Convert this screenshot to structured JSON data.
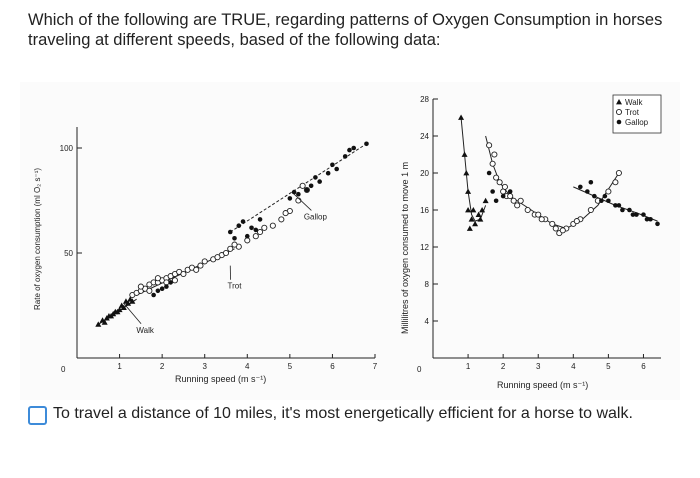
{
  "question": {
    "text": "Which of the following are TRUE, regarding patterns of Oxygen Consumption in horses traveling at different speeds, based of the following data:"
  },
  "chart_data": [
    {
      "type": "scatter",
      "title": "",
      "xlabel": "Running speed (m s⁻¹)",
      "ylabel": "Rate of oxygen consumption (ml O₂ s⁻¹)",
      "xlim": [
        0,
        7
      ],
      "ylim": [
        0,
        110
      ],
      "x_ticks": [
        "1",
        "2",
        "3",
        "4",
        "5",
        "6",
        "7"
      ],
      "y_ticks": [
        {
          "value": 0,
          "label": "0"
        },
        {
          "value": 50,
          "label": "50"
        },
        {
          "value": 100,
          "label": "100"
        }
      ],
      "annotations": [
        {
          "label": "Walk",
          "x": 1.6,
          "y": 12,
          "target_x": 1.1,
          "target_y": 26
        },
        {
          "label": "Trot",
          "x": 3.7,
          "y": 33,
          "target_x": 3.6,
          "target_y": 44
        },
        {
          "label": "Gallop",
          "x": 5.6,
          "y": 66,
          "target_x": 5.1,
          "target_y": 78
        }
      ],
      "series": [
        {
          "gait": "walk",
          "marker": "triangle",
          "x": [
            0.5,
            0.6,
            0.7,
            0.8,
            0.9,
            1.0,
            1.1,
            1.2,
            1.3,
            0.65,
            0.85,
            1.05,
            1.25,
            0.75,
            0.95,
            1.15
          ],
          "y": [
            16,
            18,
            19,
            20,
            22,
            23,
            24,
            26,
            27,
            17,
            21,
            25,
            28,
            20,
            22,
            27
          ]
        },
        {
          "gait": "trot",
          "marker": "circle",
          "x": [
            1.3,
            1.4,
            1.5,
            1.6,
            1.7,
            1.8,
            1.9,
            2.0,
            2.1,
            2.2,
            2.3,
            2.4,
            2.5,
            2.6,
            2.7,
            2.8,
            2.9,
            3.0,
            3.2,
            3.4,
            3.5,
            3.6,
            3.8,
            4.0,
            4.2,
            4.4,
            4.6,
            4.8,
            5.0,
            5.2,
            5.4,
            1.5,
            1.7,
            1.9,
            2.1,
            2.3,
            3.3,
            3.7,
            4.3,
            4.9,
            5.3
          ],
          "y": [
            30,
            31,
            32,
            33,
            35,
            36,
            36,
            37,
            38,
            39,
            40,
            41,
            40,
            42,
            43,
            42,
            44,
            46,
            47,
            49,
            50,
            52,
            53,
            56,
            58,
            62,
            63,
            66,
            70,
            75,
            80,
            34,
            32,
            38,
            36,
            37,
            48,
            54,
            60,
            69,
            82
          ]
        },
        {
          "gait": "gallop",
          "marker": "dot",
          "x": [
            1.8,
            1.9,
            2.0,
            2.1,
            2.2,
            3.6,
            3.8,
            4.0,
            4.1,
            3.9,
            4.3,
            5.0,
            5.2,
            5.4,
            5.5,
            5.7,
            5.9,
            6.1,
            6.3,
            6.5,
            6.8,
            3.7,
            4.2,
            5.1,
            5.6,
            6.0,
            6.4
          ],
          "y": [
            30,
            32,
            33,
            34,
            36,
            60,
            63,
            58,
            62,
            65,
            66,
            76,
            78,
            80,
            82,
            84,
            88,
            90,
            96,
            100,
            102,
            57,
            61,
            79,
            86,
            92,
            99
          ]
        }
      ],
      "trend_lines": [
        {
          "gait": "walk",
          "style": "solid",
          "x": [
            0.5,
            1.4
          ],
          "y": [
            16,
            28
          ]
        },
        {
          "gait": "trot",
          "style": "solid",
          "x": [
            1.4,
            3.7
          ],
          "y": [
            30,
            52
          ]
        },
        {
          "gait": "gallop",
          "style": "dashed",
          "x": [
            3.6,
            6.8
          ],
          "y": [
            60,
            102
          ]
        }
      ]
    },
    {
      "type": "scatter",
      "title": "",
      "xlabel": "Running speed (m s⁻¹)",
      "ylabel": "Millilitres of oxygen consumed to move 1 m",
      "xlim": [
        0,
        6.5
      ],
      "ylim": [
        0,
        28
      ],
      "x_ticks": [
        "1",
        "2",
        "3",
        "4",
        "5",
        "6"
      ],
      "y_ticks": [
        {
          "value": 0,
          "label": "0"
        },
        {
          "value": 4,
          "label": "4"
        },
        {
          "value": 8,
          "label": "8"
        },
        {
          "value": 12,
          "label": "12"
        },
        {
          "value": 16,
          "label": "16"
        },
        {
          "value": 20,
          "label": "20"
        },
        {
          "value": 24,
          "label": "24"
        },
        {
          "value": 28,
          "label": "28"
        }
      ],
      "legend": {
        "position": "top-right",
        "entries": [
          {
            "marker": "triangle",
            "label": "Walk"
          },
          {
            "marker": "circle",
            "label": "Trot"
          },
          {
            "marker": "dot",
            "label": "Gallop"
          }
        ]
      },
      "series": [
        {
          "gait": "walk",
          "marker": "triangle",
          "x": [
            0.8,
            0.9,
            1.0,
            1.0,
            1.1,
            1.2,
            1.3,
            1.4,
            1.5,
            0.95,
            1.05,
            1.15,
            1.35
          ],
          "y": [
            26,
            22,
            18,
            16,
            15,
            14.5,
            15.5,
            16,
            17,
            20,
            14,
            16,
            15
          ]
        },
        {
          "gait": "trot",
          "marker": "circle",
          "x": [
            1.6,
            1.7,
            1.8,
            1.9,
            2.0,
            2.1,
            2.2,
            2.3,
            2.5,
            2.7,
            2.9,
            3.0,
            3.2,
            3.4,
            3.5,
            3.6,
            3.8,
            4.0,
            4.2,
            4.5,
            4.7,
            5.0,
            5.2,
            5.3,
            1.75,
            2.05,
            2.4,
            3.1,
            3.7,
            4.1
          ],
          "y": [
            23,
            21,
            19.5,
            19,
            18,
            17.5,
            17.5,
            17,
            17,
            16,
            15.5,
            15.5,
            15,
            14.5,
            14,
            13.5,
            14,
            14.5,
            15,
            16,
            17,
            18,
            19,
            20,
            22,
            18.5,
            16.5,
            15,
            13.8,
            14.8
          ]
        },
        {
          "gait": "gallop",
          "marker": "dot",
          "x": [
            1.6,
            1.7,
            1.8,
            2.0,
            2.2,
            4.2,
            4.4,
            4.6,
            4.8,
            5.0,
            5.2,
            5.4,
            5.6,
            5.8,
            6.0,
            6.2,
            6.4,
            4.5,
            4.9,
            5.3,
            5.7,
            6.1
          ],
          "y": [
            20,
            18,
            17,
            17.5,
            18,
            18.5,
            18,
            17.5,
            17,
            17,
            16.5,
            16,
            16,
            15.5,
            15.5,
            15,
            14.5,
            19,
            17.5,
            16.5,
            15.5,
            15
          ]
        }
      ],
      "trend_lines": [
        {
          "gait": "walk",
          "style": "solid",
          "x": [
            0.8,
            0.9,
            1.0,
            1.1,
            1.2,
            1.35,
            1.5
          ],
          "y": [
            26,
            22,
            18,
            15.5,
            14.8,
            15,
            16.5
          ]
        },
        {
          "gait": "trot",
          "style": "solid",
          "x": [
            1.5,
            1.7,
            1.9,
            2.2,
            2.6,
            3.0,
            3.4,
            3.8,
            4.2,
            4.7,
            5.3
          ],
          "y": [
            24,
            21,
            19,
            17.5,
            16.5,
            15.5,
            14.5,
            14,
            14.8,
            16.5,
            20
          ]
        },
        {
          "gait": "gallop",
          "style": "solid",
          "x": [
            4.0,
            4.6,
            5.2,
            5.8,
            6.4
          ],
          "y": [
            18.5,
            17.5,
            16.5,
            15.7,
            14.8
          ]
        }
      ]
    }
  ],
  "option": {
    "text": "To travel a distance of 10 miles, it's most energetically efficient for a horse to walk."
  }
}
